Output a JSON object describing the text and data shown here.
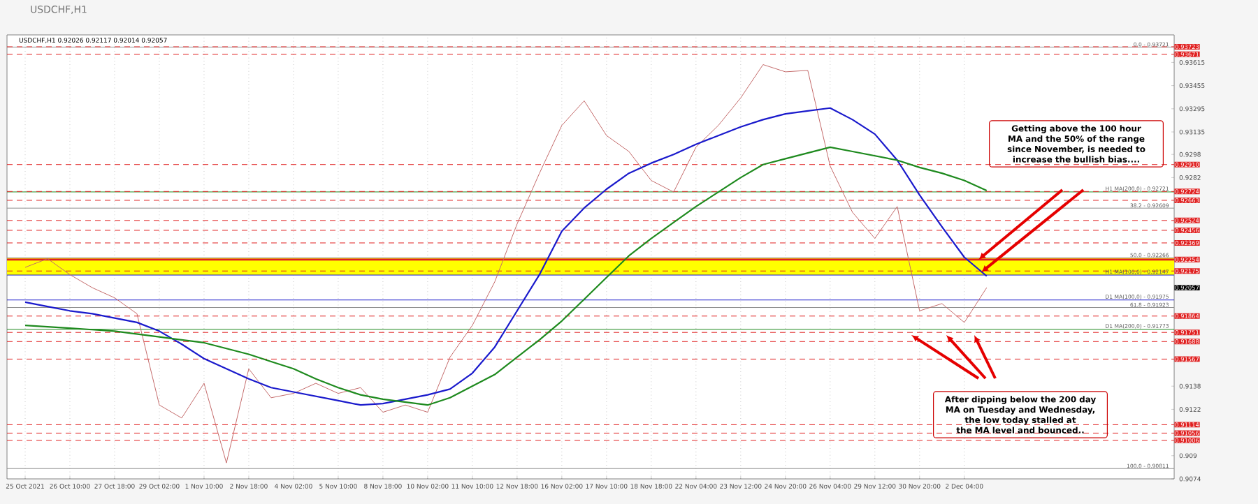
{
  "chart_data": {
    "type": "line",
    "title": "USDCHF,H1",
    "subtitle": "USDCHF,H1  0.92026 0.92117 0.92014 0.92057",
    "categories": [
      "25 Oct 2021",
      null,
      "26 Oct 10:00",
      null,
      "27 Oct 18:00",
      null,
      "29 Oct 02:00",
      null,
      "1 Nov 10:00",
      null,
      "2 Nov 18:00",
      null,
      "4 Nov 02:00",
      null,
      "5 Nov 10:00",
      null,
      "8 Nov 18:00",
      null,
      "10 Nov 02:00",
      null,
      "11 Nov 10:00",
      null,
      "12 Nov 18:00",
      null,
      "16 Nov 02:00",
      null,
      "17 Nov 10:00",
      null,
      "18 Nov 18:00",
      null,
      "22 Nov 04:00",
      null,
      "23 Nov 12:00",
      null,
      "24 Nov 20:00",
      null,
      "26 Nov 04:00",
      null,
      "29 Nov 12:00",
      null,
      "30 Nov 20:00",
      null,
      "2 Dec 04:00",
      null
    ],
    "ylim": [
      0.9074,
      0.93805
    ],
    "yticks": [
      0.9074,
      0.909,
      0.9122,
      0.9138,
      0.9282,
      0.9298,
      0.93135,
      0.93295,
      0.93455,
      0.93615
    ],
    "grid": "x",
    "series": [
      {
        "color": "#c46a6a",
        "values": [
          0.922,
          0.9226,
          0.9215,
          0.9206,
          0.9199,
          0.9188,
          0.9125,
          0.9116,
          0.914,
          0.9085,
          0.915,
          0.913,
          0.9133,
          0.914,
          0.9133,
          0.9137,
          0.912,
          0.9125,
          0.912,
          0.9158,
          0.918,
          0.921,
          0.925,
          0.9285,
          0.9318,
          0.9335,
          0.9311,
          0.93,
          0.928,
          0.9272,
          0.9303,
          0.9318,
          0.9337,
          0.936,
          0.9355,
          0.9356,
          0.929,
          0.9258,
          0.924,
          0.9262,
          0.919,
          0.9195,
          0.9182,
          0.9206
        ]
      },
      {
        "color": "#1a1acc",
        "values": [
          0.9196,
          0.9193,
          0.919,
          0.9188,
          0.9185,
          0.9182,
          0.9176,
          0.9167,
          0.9157,
          0.915,
          0.9143,
          0.9137,
          0.9134,
          0.9131,
          0.9128,
          0.9125,
          0.9126,
          0.9129,
          0.9132,
          0.9136,
          0.9147,
          0.9165,
          0.919,
          0.9215,
          0.9245,
          0.9261,
          0.9274,
          0.9285,
          0.9292,
          0.9298,
          0.9305,
          0.9311,
          0.9317,
          0.9322,
          0.9326,
          0.9328,
          0.933,
          0.9322,
          0.9312,
          0.9294,
          0.927,
          0.9248,
          0.9227,
          0.9214
        ]
      },
      {
        "color": "#1e8a1e",
        "values": [
          0.918,
          0.9179,
          0.9178,
          0.9177,
          0.9176,
          0.9174,
          0.9172,
          0.917,
          0.9168,
          0.9164,
          0.916,
          0.9155,
          0.915,
          0.9143,
          0.9137,
          0.9132,
          0.9129,
          0.9127,
          0.9125,
          0.913,
          0.9138,
          0.9146,
          0.9158,
          0.917,
          0.9183,
          0.9198,
          0.9213,
          0.9228,
          0.924,
          0.9251,
          0.9262,
          0.9272,
          0.9282,
          0.9291,
          0.9295,
          0.9299,
          0.9303,
          0.93,
          0.9297,
          0.9294,
          0.9289,
          0.9285,
          0.928,
          0.9273
        ]
      }
    ],
    "bands": [
      {
        "axis": "y",
        "from": 0.92147,
        "to": 0.92266,
        "color": "#ffff00"
      }
    ],
    "ref_lines": [
      {
        "axis": "y",
        "value": 0.93721,
        "color": "#909090",
        "line_style": "solid"
      },
      {
        "axis": "y",
        "value": 0.92609,
        "color": "#909090",
        "line_style": "solid"
      },
      {
        "axis": "y",
        "value": 0.92266,
        "color": "#909090",
        "line_style": "solid"
      },
      {
        "axis": "y",
        "value": 0.91923,
        "color": "#909090",
        "line_style": "solid"
      },
      {
        "axis": "y",
        "value": 0.90811,
        "color": "#909090",
        "line_style": "solid"
      },
      {
        "axis": "y",
        "value": 0.92721,
        "color": "#1e8a1e",
        "line_style": "solid"
      },
      {
        "axis": "y",
        "value": 0.92147,
        "color": "#1a1acc",
        "line_style": "solid"
      },
      {
        "axis": "y",
        "value": 0.91975,
        "color": "#1a1acc",
        "line_style": "solid"
      },
      {
        "axis": "y",
        "value": 0.91773,
        "color": "#1e8a1e",
        "line_style": "solid"
      },
      {
        "axis": "y",
        "value": 0.93723,
        "label": "0.93723",
        "color": "#e02020",
        "line_style": "dashed"
      },
      {
        "axis": "y",
        "value": 0.93671,
        "label": "0.93671",
        "color": "#e02020",
        "line_style": "dashed"
      },
      {
        "axis": "y",
        "value": 0.9291,
        "label": "0.92910",
        "color": "#e02020",
        "line_style": "dashed"
      },
      {
        "axis": "y",
        "value": 0.92724,
        "label": "0.92724",
        "color": "#e02020",
        "line_style": "dashed"
      },
      {
        "axis": "y",
        "value": 0.92663,
        "label": "0.92663",
        "color": "#e02020",
        "line_style": "dashed"
      },
      {
        "axis": "y",
        "value": 0.92524,
        "label": "0.92524",
        "color": "#e02020",
        "line_style": "dashed"
      },
      {
        "axis": "y",
        "value": 0.92456,
        "label": "0.92456",
        "color": "#e02020",
        "line_style": "dashed"
      },
      {
        "axis": "y",
        "value": 0.92369,
        "label": "0.92369",
        "color": "#e02020",
        "line_style": "dashed"
      },
      {
        "axis": "y",
        "value": 0.92254,
        "label": "0.92254",
        "color": "#e02020",
        "line_style": "solid"
      },
      {
        "axis": "y",
        "value": 0.92175,
        "label": "0.92175",
        "color": "#e02020",
        "line_style": "dashed"
      },
      {
        "axis": "y",
        "value": 0.91864,
        "label": "0.91864",
        "color": "#e02020",
        "line_style": "dashed"
      },
      {
        "axis": "y",
        "value": 0.91751,
        "label": "0.91751",
        "color": "#e02020",
        "line_style": "dashed"
      },
      {
        "axis": "y",
        "value": 0.91688,
        "label": "0.91688",
        "color": "#e02020",
        "line_style": "dashed"
      },
      {
        "axis": "y",
        "value": 0.91567,
        "label": "0.91567",
        "color": "#e02020",
        "line_style": "dashed"
      },
      {
        "axis": "y",
        "value": 0.91114,
        "label": "0.91114",
        "color": "#e02020",
        "line_style": "dashed"
      },
      {
        "axis": "y",
        "value": 0.91056,
        "label": "0.91056",
        "color": "#e02020",
        "line_style": "dashed"
      },
      {
        "axis": "y",
        "value": 0.91006,
        "label": "0.91006",
        "color": "#e02020",
        "line_style": "dashed"
      }
    ],
    "annotations": [
      {
        "text": "0.0 - 0.93721",
        "y": 0.93721
      },
      {
        "text": "38.2 - 0.92609",
        "y": 0.92609
      },
      {
        "text": "50.0 - 0.92266",
        "y": 0.92266
      },
      {
        "text": "61.8 - 0.91923",
        "y": 0.91923
      },
      {
        "text": "100.0 - 0.90811",
        "y": 0.90811
      },
      {
        "text": "H1 MA(200,0) - 0.92721",
        "y": 0.92721
      },
      {
        "text": "H1 MA(100,0) - 0.92147",
        "y": 0.92147
      },
      {
        "text": "D1 MA(100,0) - 0.91975",
        "y": 0.91975
      },
      {
        "text": "D1 MA(200,0) - 0.91773",
        "y": 0.91773
      },
      "0.92057",
      "Getting above the 100 hour MA and the 50% of the range since November, is needed to increase the bullish bias....",
      "After dipping below the 200 day MA on Tuesday and Wednesday, the low today stalled at the MA level and bounced.."
    ]
  }
}
